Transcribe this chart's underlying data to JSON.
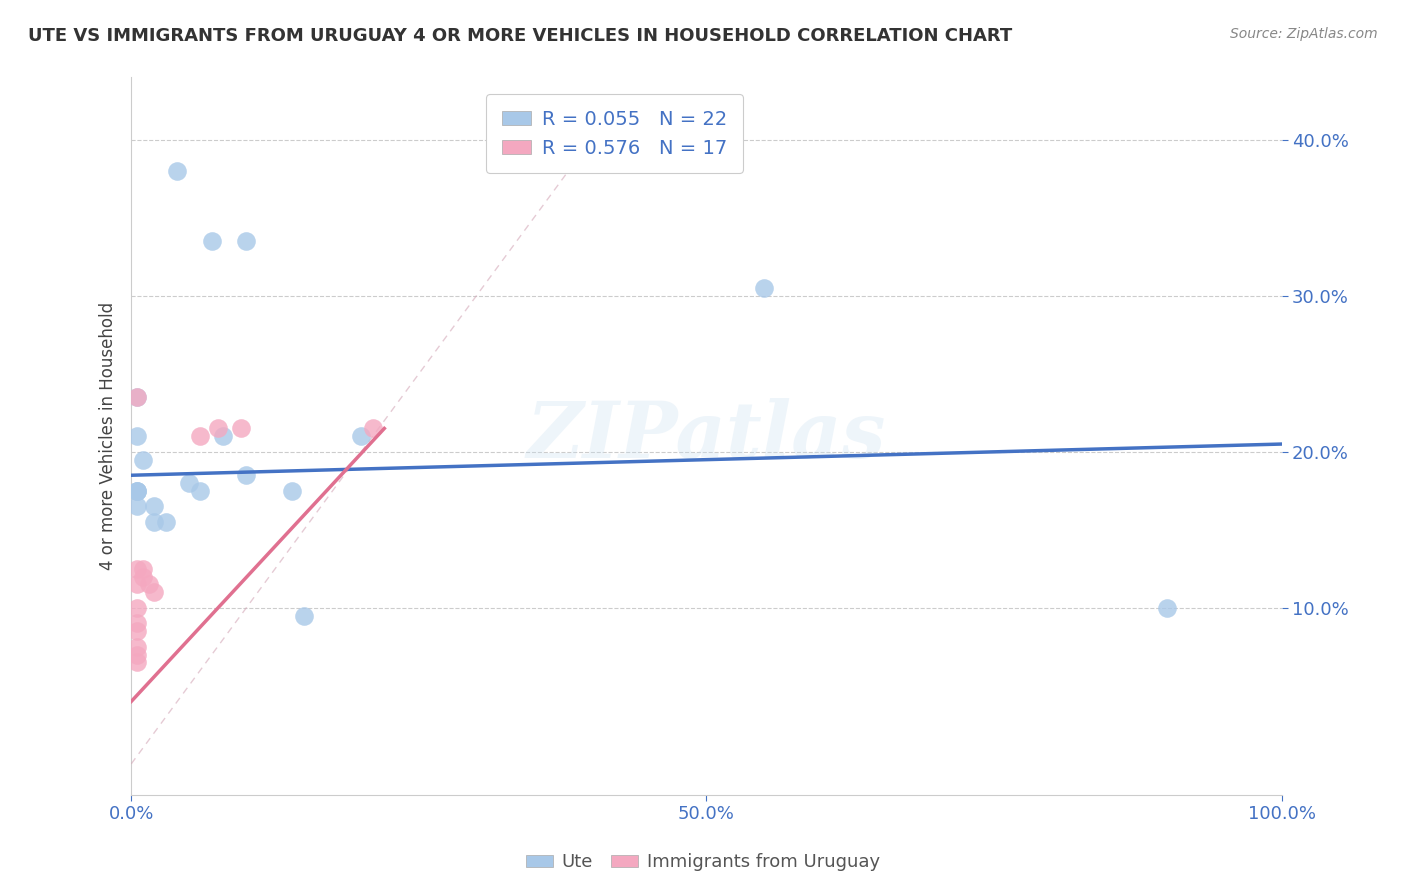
{
  "title": "UTE VS IMMIGRANTS FROM URUGUAY 4 OR MORE VEHICLES IN HOUSEHOLD CORRELATION CHART",
  "source_text": "Source: ZipAtlas.com",
  "ylabel": "4 or more Vehicles in Household",
  "legend_label1": "Ute",
  "legend_label2": "Immigrants from Uruguay",
  "R1": 0.055,
  "N1": 22,
  "R2": 0.576,
  "N2": 17,
  "color1": "#a8c8e8",
  "color2": "#f4a8c0",
  "line_color1": "#4472c4",
  "line_color2": "#e07090",
  "watermark": "ZIPatlas",
  "ute_x": [
    0.04,
    0.07,
    0.1,
    0.005,
    0.005,
    0.01,
    0.005,
    0.005,
    0.02,
    0.02,
    0.03,
    0.05,
    0.06,
    0.08,
    0.1,
    0.14,
    0.2,
    0.55,
    0.9,
    0.15,
    0.005,
    0.005
  ],
  "ute_y": [
    0.38,
    0.335,
    0.335,
    0.235,
    0.21,
    0.195,
    0.175,
    0.165,
    0.165,
    0.155,
    0.155,
    0.18,
    0.175,
    0.21,
    0.185,
    0.175,
    0.21,
    0.305,
    0.1,
    0.095,
    0.175,
    0.175
  ],
  "uru_x": [
    0.005,
    0.005,
    0.005,
    0.005,
    0.005,
    0.005,
    0.005,
    0.005,
    0.005,
    0.01,
    0.01,
    0.015,
    0.02,
    0.06,
    0.075,
    0.095,
    0.21
  ],
  "uru_y": [
    0.235,
    0.125,
    0.115,
    0.1,
    0.09,
    0.085,
    0.075,
    0.07,
    0.065,
    0.125,
    0.12,
    0.115,
    0.11,
    0.21,
    0.215,
    0.215,
    0.215
  ],
  "xlim": [
    0.0,
    1.0
  ],
  "ylim": [
    -0.02,
    0.44
  ],
  "x_ticks": [
    0.0,
    0.5,
    1.0
  ],
  "x_tick_labels": [
    "0.0%",
    "50.0%",
    "100.0%"
  ],
  "y_ticks": [
    0.1,
    0.2,
    0.3,
    0.4
  ],
  "y_tick_labels": [
    "10.0%",
    "20.0%",
    "30.0%",
    "40.0%"
  ],
  "blue_line_x": [
    0.0,
    1.0
  ],
  "blue_line_y": [
    0.185,
    0.205
  ],
  "pink_line_x": [
    0.0,
    0.22
  ],
  "pink_line_y": [
    0.04,
    0.215
  ]
}
